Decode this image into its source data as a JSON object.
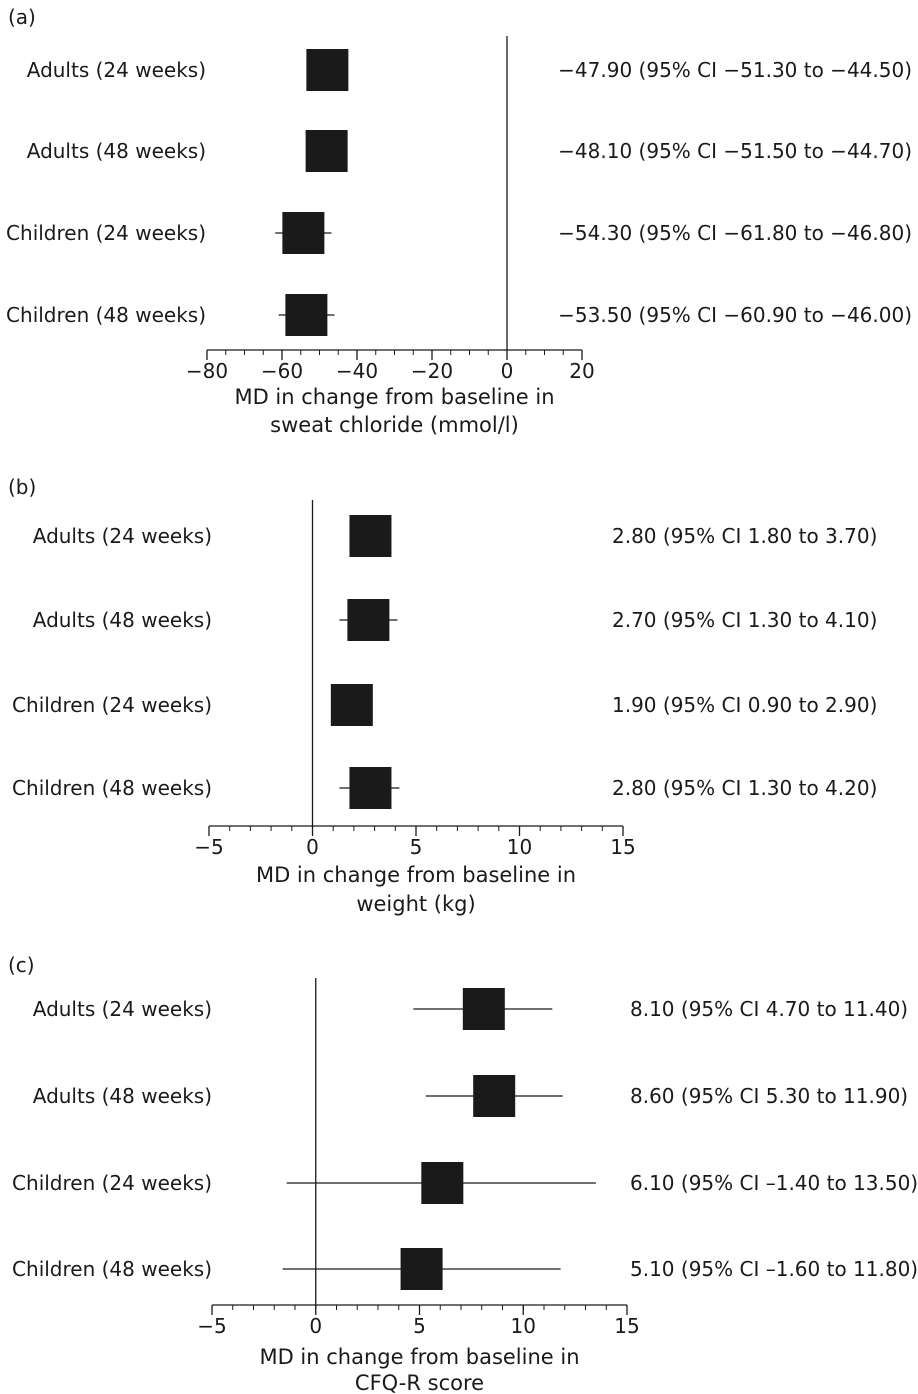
{
  "chart_data": [
    {
      "type": "forest",
      "panel_label": "(a)",
      "rows": [
        {
          "label": "Adults (24 weeks)",
          "estimate": -47.9,
          "ci": [
            -51.3,
            -44.5
          ],
          "summary": "−47.90 (95% CI −51.30 to −44.50)"
        },
        {
          "label": "Adults (48 weeks)",
          "estimate": -48.1,
          "ci": [
            -51.5,
            -44.7
          ],
          "summary": "−48.10 (95% CI −51.50 to −44.70)"
        },
        {
          "label": "Children (24 weeks)",
          "estimate": -54.3,
          "ci": [
            -61.8,
            -46.8
          ],
          "summary": "−54.30 (95% CI −61.80 to −46.80)"
        },
        {
          "label": "Children (48 weeks)",
          "estimate": -53.5,
          "ci": [
            -60.9,
            -46.0
          ],
          "summary": "−53.50 (95% CI −60.90 to −46.00)"
        }
      ],
      "xlim": [
        -80,
        20
      ],
      "ticks": [
        -80,
        -60,
        -40,
        -20,
        0,
        20
      ],
      "tick_labels": [
        "−80",
        "−60",
        "−40",
        "−20",
        "0",
        "20"
      ],
      "minor_step": 5,
      "reference_line": 0,
      "xlabel": [
        "MD in change from baseline in",
        "sweat chloride (mmol/l)"
      ]
    },
    {
      "type": "forest",
      "panel_label": "(b)",
      "rows": [
        {
          "label": "Adults (24 weeks)",
          "estimate": 2.8,
          "ci": [
            1.8,
            3.7
          ],
          "summary": "2.80 (95% CI 1.80 to 3.70)"
        },
        {
          "label": "Adults (48 weeks)",
          "estimate": 2.7,
          "ci": [
            1.3,
            4.1
          ],
          "summary": "2.70 (95% CI 1.30 to 4.10)"
        },
        {
          "label": "Children (24 weeks)",
          "estimate": 1.9,
          "ci": [
            0.9,
            2.9
          ],
          "summary": "1.90 (95% CI 0.90 to 2.90)"
        },
        {
          "label": "Children (48 weeks)",
          "estimate": 2.8,
          "ci": [
            1.3,
            4.2
          ],
          "summary": "2.80 (95% CI 1.30 to 4.20)"
        }
      ],
      "xlim": [
        -5,
        15
      ],
      "ticks": [
        -5,
        0,
        5,
        10,
        15
      ],
      "tick_labels": [
        "−5",
        "0",
        "5",
        "10",
        "15"
      ],
      "minor_step": 1,
      "reference_line": 0,
      "xlabel": [
        "MD in change from baseline in",
        "weight (kg)"
      ]
    },
    {
      "type": "forest",
      "panel_label": "(c)",
      "rows": [
        {
          "label": "Adults (24 weeks)",
          "estimate": 8.1,
          "ci": [
            4.7,
            11.4
          ],
          "summary": "8.10 (95% CI 4.70 to 11.40)"
        },
        {
          "label": "Adults (48 weeks)",
          "estimate": 8.6,
          "ci": [
            5.3,
            11.9
          ],
          "summary": "8.60 (95% CI 5.30 to 11.90)"
        },
        {
          "label": "Children (24 weeks)",
          "estimate": 6.1,
          "ci": [
            -1.4,
            13.5
          ],
          "summary": "6.10 (95% CI –1.40 to 13.50)"
        },
        {
          "label": "Children (48 weeks)",
          "estimate": 5.1,
          "ci": [
            -1.6,
            11.8
          ],
          "summary": "5.10 (95% CI –1.60 to 11.80)"
        }
      ],
      "xlim": [
        -5,
        15
      ],
      "ticks": [
        -5,
        0,
        5,
        10,
        15
      ],
      "tick_labels": [
        "−5",
        "0",
        "5",
        "10",
        "15"
      ],
      "minor_step": 1,
      "reference_line": 0,
      "xlabel": [
        "MD in change from baseline in",
        "CFQ-R score"
      ]
    }
  ],
  "colors": {
    "marker": "#1a1a1a",
    "line": "#1a1a1a",
    "background": "#ffffff"
  }
}
